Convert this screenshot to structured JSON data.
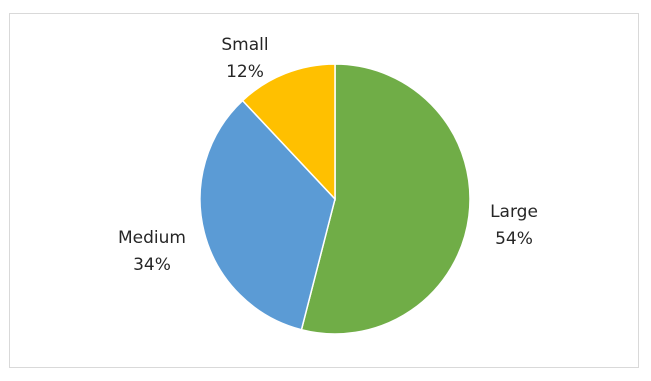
{
  "chart_data": {
    "type": "pie",
    "title": "",
    "categories": [
      "Large",
      "Medium",
      "Small"
    ],
    "values": [
      54,
      34,
      12
    ],
    "percent_labels": [
      "54%",
      "34%",
      "12%"
    ],
    "colors": [
      "#70ad47",
      "#5b9bd5",
      "#ffc000"
    ],
    "start_angle": "12 o'clock",
    "direction": "clockwise",
    "legend": "none"
  }
}
